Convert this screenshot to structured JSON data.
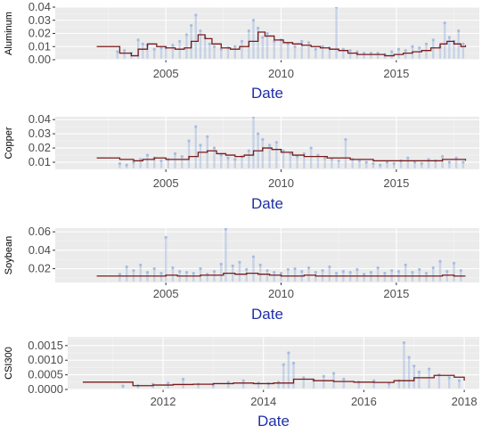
{
  "colors": {
    "panel_bg": "#ebebeb",
    "grid_major": "#ffffff",
    "grid_minor": "#f5f5f5",
    "raw_series": "#a8bde0",
    "step_series": "#7b1c1c",
    "axis_title": "#1f2fa8",
    "tick_text": "#4d4d4d"
  },
  "chart_data": [
    {
      "type": "line",
      "xlabel": "Date",
      "ylabel": "Aluminum",
      "x_axis_type": "year",
      "xlim": [
        2000.2,
        2018.6
      ],
      "xticks": [
        2005,
        2010,
        2015
      ],
      "xtick_labels": [
        "2005",
        "2010",
        "2015"
      ],
      "ylim": [
        0.0,
        0.04
      ],
      "yticks": [
        0.0,
        0.01,
        0.02,
        0.03,
        0.04
      ],
      "ytick_labels": [
        "0.00",
        "0.01",
        "0.02",
        "0.03",
        "0.04"
      ],
      "grid": true,
      "series": [
        {
          "style": "points",
          "x": [
            2002.9,
            2003.2,
            2003.5,
            2003.8,
            2004.0,
            2004.2,
            2004.5,
            2004.8,
            2005.0,
            2005.3,
            2005.6,
            2005.9,
            2006.1,
            2006.3,
            2006.5,
            2006.7,
            2006.9,
            2007.1,
            2007.4,
            2007.7,
            2008.0,
            2008.3,
            2008.6,
            2008.8,
            2009.0,
            2009.2,
            2009.4,
            2009.7,
            2010.0,
            2010.3,
            2010.6,
            2010.9,
            2011.2,
            2011.5,
            2011.8,
            2012.1,
            2012.4,
            2012.7,
            2013.0,
            2013.3,
            2013.6,
            2013.9,
            2014.2,
            2014.5,
            2014.8,
            2015.1,
            2015.4,
            2015.7,
            2016.0,
            2016.3,
            2016.6,
            2016.9,
            2017.1,
            2017.3,
            2017.5,
            2017.7,
            2017.9
          ],
          "y": [
            0.006,
            0.007,
            0.005,
            0.015,
            0.012,
            0.011,
            0.008,
            0.009,
            0.009,
            0.011,
            0.014,
            0.019,
            0.026,
            0.034,
            0.022,
            0.017,
            0.012,
            0.01,
            0.008,
            0.009,
            0.01,
            0.014,
            0.022,
            0.03,
            0.024,
            0.017,
            0.02,
            0.014,
            0.015,
            0.012,
            0.01,
            0.014,
            0.013,
            0.008,
            0.01,
            0.009,
            0.04,
            0.008,
            0.007,
            0.006,
            0.005,
            0.005,
            0.005,
            0.004,
            0.006,
            0.008,
            0.007,
            0.01,
            0.009,
            0.012,
            0.015,
            0.01,
            0.028,
            0.017,
            0.014,
            0.022,
            0.012
          ]
        },
        {
          "style": "step",
          "x": [
            2002.0,
            2002.7,
            2003.0,
            2003.5,
            2003.8,
            2004.2,
            2004.6,
            2005.0,
            2005.4,
            2005.8,
            2006.1,
            2006.4,
            2006.7,
            2007.0,
            2007.4,
            2007.8,
            2008.2,
            2008.6,
            2009.0,
            2009.3,
            2009.7,
            2010.1,
            2010.5,
            2010.9,
            2011.3,
            2011.7,
            2012.1,
            2012.5,
            2012.9,
            2013.3,
            2013.7,
            2014.1,
            2014.5,
            2014.9,
            2015.3,
            2015.7,
            2016.1,
            2016.5,
            2016.9,
            2017.2,
            2017.5,
            2017.8,
            2018.0
          ],
          "y": [
            0.01,
            0.01,
            0.005,
            0.003,
            0.008,
            0.012,
            0.01,
            0.009,
            0.008,
            0.009,
            0.014,
            0.019,
            0.016,
            0.012,
            0.009,
            0.008,
            0.01,
            0.014,
            0.021,
            0.018,
            0.015,
            0.013,
            0.012,
            0.011,
            0.01,
            0.009,
            0.008,
            0.007,
            0.005,
            0.004,
            0.004,
            0.004,
            0.003,
            0.004,
            0.005,
            0.006,
            0.007,
            0.009,
            0.012,
            0.014,
            0.012,
            0.01,
            0.011
          ]
        }
      ]
    },
    {
      "type": "line",
      "xlabel": "Date",
      "ylabel": "Copper",
      "x_axis_type": "year",
      "xlim": [
        2000.2,
        2018.6
      ],
      "xticks": [
        2005,
        2010,
        2015
      ],
      "xtick_labels": [
        "2005",
        "2010",
        "2015"
      ],
      "ylim": [
        0.005,
        0.042
      ],
      "yticks": [
        0.01,
        0.02,
        0.03,
        0.04
      ],
      "ytick_labels": [
        "0.01",
        "0.02",
        "0.03",
        "0.04"
      ],
      "grid": true,
      "series": [
        {
          "style": "points",
          "x": [
            2003.0,
            2003.3,
            2003.6,
            2003.9,
            2004.2,
            2004.5,
            2004.8,
            2005.1,
            2005.4,
            2005.7,
            2006.0,
            2006.3,
            2006.5,
            2006.8,
            2007.1,
            2007.4,
            2007.7,
            2008.0,
            2008.3,
            2008.6,
            2008.8,
            2009.0,
            2009.2,
            2009.5,
            2009.8,
            2010.1,
            2010.4,
            2010.7,
            2011.0,
            2011.3,
            2011.6,
            2011.9,
            2012.2,
            2012.5,
            2012.8,
            2013.1,
            2013.4,
            2013.7,
            2014.0,
            2014.3,
            2014.6,
            2014.9,
            2015.2,
            2015.5,
            2015.8,
            2016.1,
            2016.4,
            2016.7,
            2017.0,
            2017.3,
            2017.6,
            2017.9
          ],
          "y": [
            0.009,
            0.008,
            0.01,
            0.012,
            0.015,
            0.013,
            0.011,
            0.012,
            0.016,
            0.014,
            0.025,
            0.035,
            0.022,
            0.028,
            0.02,
            0.015,
            0.013,
            0.012,
            0.014,
            0.018,
            0.042,
            0.03,
            0.026,
            0.022,
            0.024,
            0.018,
            0.016,
            0.014,
            0.016,
            0.02,
            0.015,
            0.013,
            0.012,
            0.011,
            0.026,
            0.012,
            0.011,
            0.01,
            0.009,
            0.008,
            0.01,
            0.009,
            0.011,
            0.013,
            0.01,
            0.009,
            0.012,
            0.011,
            0.014,
            0.01,
            0.013,
            0.01
          ]
        },
        {
          "style": "step",
          "x": [
            2002.0,
            2003.0,
            2003.6,
            2004.0,
            2004.5,
            2005.0,
            2005.5,
            2006.0,
            2006.4,
            2006.8,
            2007.2,
            2007.6,
            2008.0,
            2008.4,
            2008.8,
            2009.2,
            2009.6,
            2010.0,
            2010.5,
            2011.0,
            2011.5,
            2012.0,
            2012.5,
            2013.0,
            2013.5,
            2014.0,
            2014.5,
            2015.0,
            2015.5,
            2016.0,
            2016.5,
            2017.0,
            2017.5,
            2018.0
          ],
          "y": [
            0.013,
            0.012,
            0.011,
            0.012,
            0.013,
            0.012,
            0.012,
            0.014,
            0.017,
            0.018,
            0.016,
            0.015,
            0.014,
            0.015,
            0.018,
            0.02,
            0.019,
            0.017,
            0.015,
            0.014,
            0.014,
            0.013,
            0.013,
            0.012,
            0.012,
            0.011,
            0.011,
            0.011,
            0.011,
            0.011,
            0.011,
            0.012,
            0.012,
            0.011
          ]
        }
      ]
    },
    {
      "type": "line",
      "xlabel": "Date",
      "ylabel": "Soybean",
      "x_axis_type": "year",
      "xlim": [
        2000.2,
        2018.6
      ],
      "xticks": [
        2005,
        2010,
        2015
      ],
      "xtick_labels": [
        "2005",
        "2010",
        "2015"
      ],
      "ylim": [
        0.005,
        0.064
      ],
      "yticks": [
        0.02,
        0.04,
        0.06
      ],
      "ytick_labels": [
        "0.02",
        "0.04",
        "0.06"
      ],
      "grid": true,
      "series": [
        {
          "style": "points",
          "x": [
            2003.0,
            2003.3,
            2003.6,
            2003.9,
            2004.2,
            2004.5,
            2004.8,
            2005.0,
            2005.3,
            2005.6,
            2005.9,
            2006.2,
            2006.5,
            2006.8,
            2007.1,
            2007.4,
            2007.6,
            2007.9,
            2008.2,
            2008.5,
            2008.8,
            2009.1,
            2009.4,
            2009.7,
            2010.0,
            2010.3,
            2010.6,
            2010.9,
            2011.2,
            2011.5,
            2011.8,
            2012.1,
            2012.4,
            2012.7,
            2013.0,
            2013.3,
            2013.6,
            2013.9,
            2014.2,
            2014.5,
            2014.8,
            2015.1,
            2015.4,
            2015.7,
            2016.0,
            2016.3,
            2016.6,
            2016.9,
            2017.2,
            2017.5,
            2017.8
          ],
          "y": [
            0.014,
            0.022,
            0.018,
            0.024,
            0.016,
            0.02,
            0.015,
            0.054,
            0.021,
            0.017,
            0.016,
            0.015,
            0.02,
            0.014,
            0.017,
            0.025,
            0.063,
            0.023,
            0.027,
            0.019,
            0.033,
            0.024,
            0.018,
            0.016,
            0.015,
            0.019,
            0.02,
            0.017,
            0.021,
            0.016,
            0.018,
            0.022,
            0.015,
            0.017,
            0.016,
            0.019,
            0.014,
            0.016,
            0.021,
            0.015,
            0.018,
            0.017,
            0.024,
            0.016,
            0.019,
            0.015,
            0.021,
            0.028,
            0.017,
            0.026,
            0.018
          ]
        },
        {
          "style": "step",
          "x": [
            2002.0,
            2003.0,
            2003.5,
            2004.0,
            2004.5,
            2005.0,
            2005.5,
            2006.0,
            2006.5,
            2007.0,
            2007.5,
            2008.0,
            2008.5,
            2009.0,
            2009.5,
            2010.0,
            2010.5,
            2011.0,
            2011.5,
            2012.0,
            2012.5,
            2013.0,
            2013.5,
            2014.0,
            2014.5,
            2015.0,
            2015.5,
            2016.0,
            2016.5,
            2017.0,
            2017.5,
            2018.0
          ],
          "y": [
            0.012,
            0.012,
            0.012,
            0.012,
            0.012,
            0.013,
            0.012,
            0.012,
            0.013,
            0.013,
            0.015,
            0.014,
            0.015,
            0.014,
            0.013,
            0.012,
            0.012,
            0.013,
            0.012,
            0.012,
            0.012,
            0.012,
            0.012,
            0.012,
            0.012,
            0.012,
            0.012,
            0.012,
            0.012,
            0.013,
            0.012,
            0.012
          ]
        }
      ]
    },
    {
      "type": "line",
      "xlabel": "Date",
      "ylabel": "CSI300",
      "x_axis_type": "year",
      "xlim": [
        2010.1,
        2018.3
      ],
      "xticks": [
        2012,
        2014,
        2016,
        2018
      ],
      "xtick_labels": [
        "2012",
        "2014",
        "2016",
        "2018"
      ],
      "ylim": [
        0.0,
        0.0018
      ],
      "yticks": [
        0.0,
        0.0005,
        0.001,
        0.0015
      ],
      "ytick_labels": [
        "0.0000",
        "0.0005",
        "0.0010",
        "0.0015"
      ],
      "grid": true,
      "series": [
        {
          "style": "points",
          "x": [
            2011.2,
            2011.5,
            2011.8,
            2012.1,
            2012.4,
            2012.7,
            2013.0,
            2013.3,
            2013.6,
            2013.9,
            2014.1,
            2014.3,
            2014.4,
            2014.5,
            2014.6,
            2014.8,
            2015.0,
            2015.2,
            2015.4,
            2015.6,
            2015.9,
            2016.2,
            2016.5,
            2016.7,
            2016.8,
            2016.9,
            2017.0,
            2017.1,
            2017.3,
            2017.5,
            2017.7,
            2017.9
          ],
          "y": [
            0.00012,
            0.00013,
            0.00018,
            0.00022,
            0.00035,
            0.00018,
            0.00015,
            0.00025,
            0.0003,
            0.00022,
            0.0002,
            0.00025,
            0.00085,
            0.00125,
            0.0009,
            0.0004,
            0.0003,
            0.00045,
            0.00055,
            0.00035,
            0.00025,
            0.0003,
            0.0002,
            0.0003,
            0.0016,
            0.0011,
            0.0008,
            0.0006,
            0.0007,
            0.0005,
            0.0004,
            0.0003
          ]
        },
        {
          "style": "step",
          "x": [
            2010.4,
            2011.0,
            2011.4,
            2011.8,
            2012.2,
            2012.6,
            2013.0,
            2013.4,
            2013.8,
            2014.2,
            2014.6,
            2015.0,
            2015.4,
            2015.8,
            2016.2,
            2016.6,
            2017.0,
            2017.4,
            2017.8,
            2018.0
          ],
          "y": [
            0.00025,
            0.00025,
            0.00013,
            0.00015,
            0.00017,
            0.00018,
            0.0002,
            0.00022,
            0.0002,
            0.00022,
            0.00035,
            0.0003,
            0.00027,
            0.00025,
            0.00024,
            0.0003,
            0.0004,
            0.00048,
            0.00042,
            0.0003
          ]
        }
      ]
    }
  ]
}
